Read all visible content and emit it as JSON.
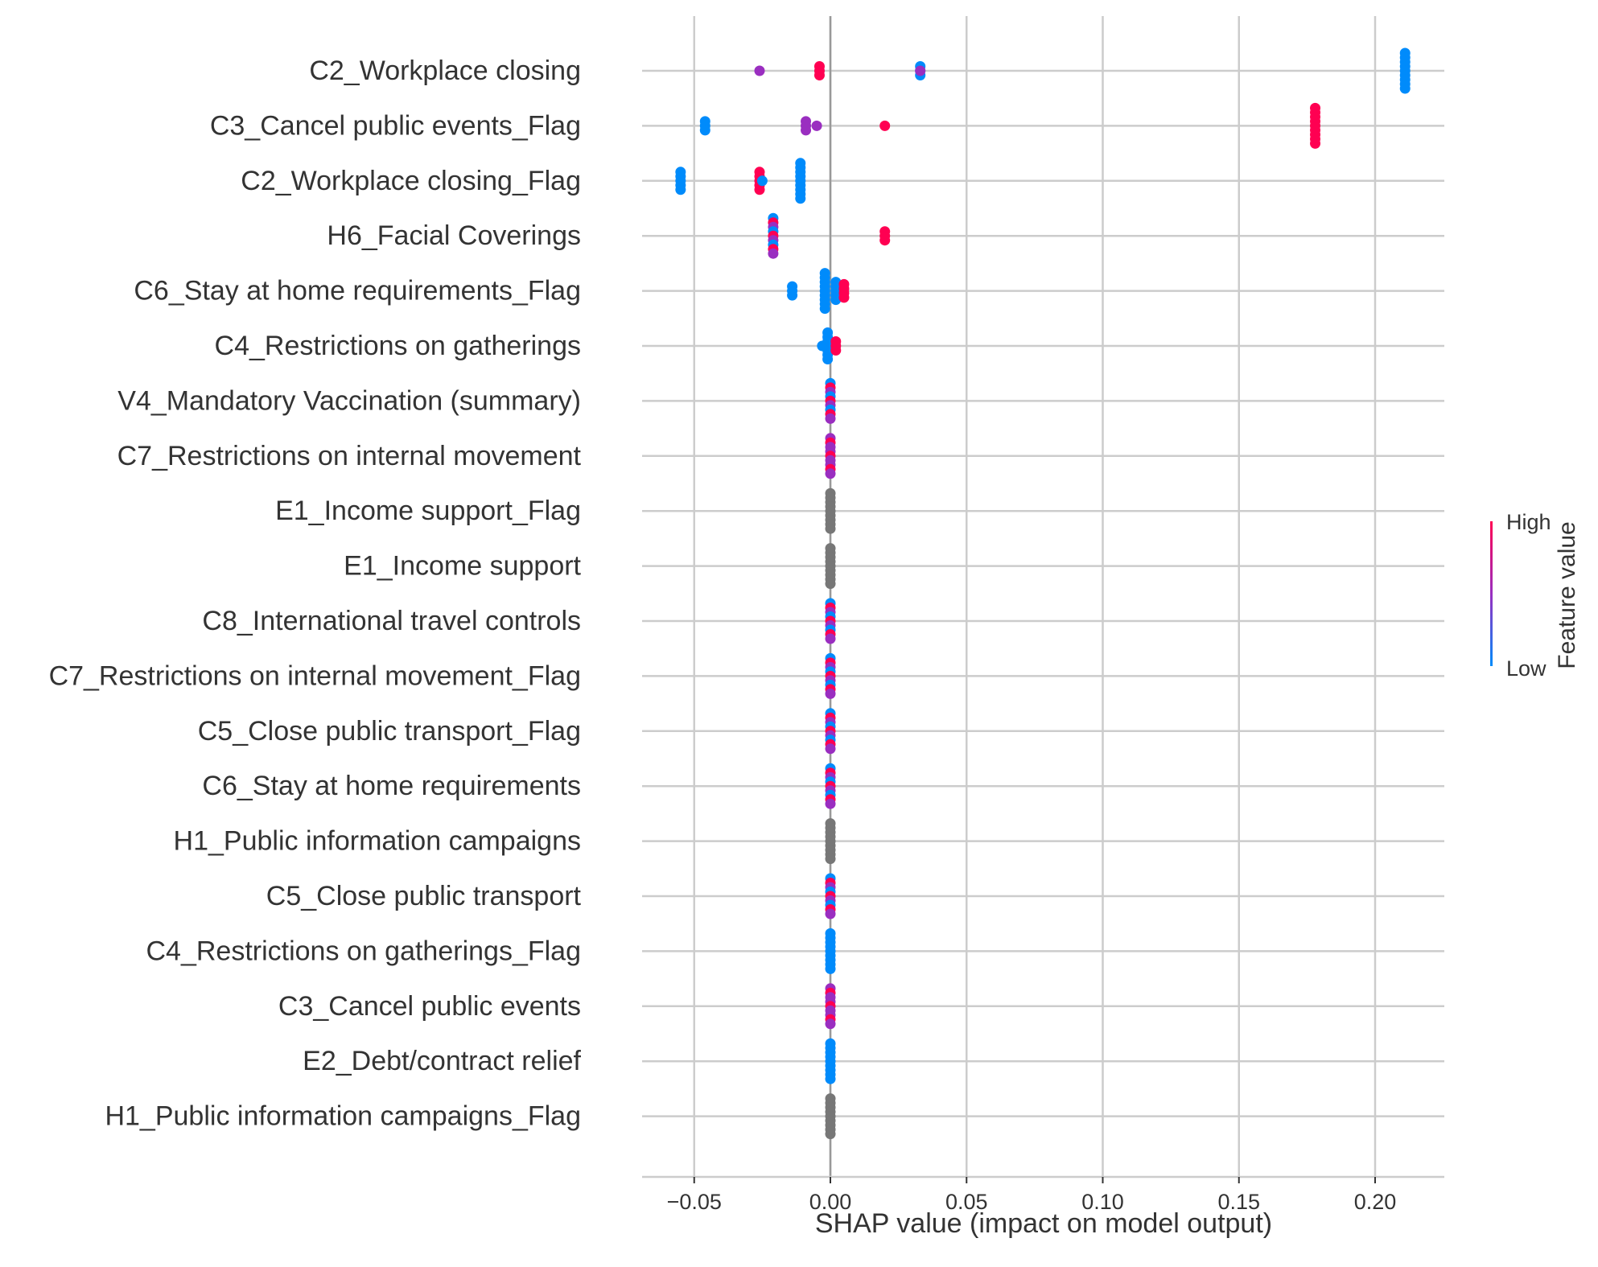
{
  "chart_data": {
    "type": "scatter",
    "subtype": "shap-beeswarm",
    "title": "",
    "xlabel": "SHAP value (impact on model output)",
    "ylabel": "",
    "xlim": [
      -0.068,
      0.225
    ],
    "xticks": [
      -0.05,
      0.0,
      0.05,
      0.1,
      0.15,
      0.2
    ],
    "xtick_labels": [
      "−0.05",
      "0.00",
      "0.05",
      "0.10",
      "0.15",
      "0.20"
    ],
    "grid": "vertical and horizontal",
    "colors": {
      "high": "#ff0052",
      "low": "#008bfb",
      "mid": "#9a2ec0",
      "grid": "#cccccc",
      "zero_line": "#999999",
      "constant": "#777777"
    },
    "colorbar": {
      "title": "Feature value",
      "high_label": "High",
      "low_label": "Low",
      "placement": "right"
    },
    "features": [
      {
        "name": "C2_Workplace closing",
        "points": [
          {
            "x": -0.026,
            "v": 0.7,
            "n": 1
          },
          {
            "x": -0.004,
            "v": 0.95,
            "n": 3
          },
          {
            "x": 0.033,
            "v": 0.0,
            "n": 3
          },
          {
            "x": 0.033,
            "v": 0.5,
            "n": 1
          },
          {
            "x": 0.211,
            "v": 0.0,
            "n": 9
          }
        ]
      },
      {
        "name": "C3_Cancel public events_Flag",
        "points": [
          {
            "x": -0.046,
            "v": 0.1,
            "n": 3
          },
          {
            "x": -0.009,
            "v": 0.5,
            "n": 3
          },
          {
            "x": -0.005,
            "v": 0.5,
            "n": 1
          },
          {
            "x": 0.02,
            "v": 0.95,
            "n": 1
          },
          {
            "x": 0.178,
            "v": 1.0,
            "n": 9
          }
        ]
      },
      {
        "name": "C2_Workplace closing_Flag",
        "points": [
          {
            "x": -0.055,
            "v": 0.0,
            "n": 5
          },
          {
            "x": -0.026,
            "v": 1.0,
            "n": 5
          },
          {
            "x": -0.025,
            "v": 0.1,
            "n": 1
          },
          {
            "x": -0.011,
            "v": 0.0,
            "n": 9
          }
        ]
      },
      {
        "name": "H6_Facial Coverings",
        "points": [
          {
            "x": -0.021,
            "v": 0.0,
            "n": 9,
            "mixed": true
          },
          {
            "x": 0.02,
            "v": 1.0,
            "n": 3
          }
        ]
      },
      {
        "name": "C6_Stay at home requirements_Flag",
        "points": [
          {
            "x": -0.014,
            "v": 0.0,
            "n": 3
          },
          {
            "x": -0.002,
            "v": 0.0,
            "n": 9
          },
          {
            "x": 0.002,
            "v": 0.0,
            "n": 5
          },
          {
            "x": 0.005,
            "v": 1.0,
            "n": 4
          }
        ]
      },
      {
        "name": "C4_Restrictions on gatherings",
        "points": [
          {
            "x": -0.003,
            "v": 0.0,
            "n": 1
          },
          {
            "x": -0.001,
            "v": 0.0,
            "n": 7
          },
          {
            "x": 0.002,
            "v": 1.0,
            "n": 3
          }
        ]
      },
      {
        "name": "V4_Mandatory Vaccination (summary)",
        "points": [
          {
            "x": 0.0,
            "v": 0.0,
            "n": 9,
            "mixed": true
          }
        ]
      },
      {
        "name": "C7_Restrictions on internal movement",
        "points": [
          {
            "x": 0.0,
            "v": 0.5,
            "n": 9,
            "mixed": true
          }
        ]
      },
      {
        "name": "E1_Income support_Flag",
        "points": [
          {
            "x": 0.0,
            "const": true,
            "n": 9
          }
        ]
      },
      {
        "name": "E1_Income support",
        "points": [
          {
            "x": 0.0,
            "const": true,
            "n": 9
          }
        ]
      },
      {
        "name": "C8_International travel controls",
        "points": [
          {
            "x": 0.0,
            "v": 0.0,
            "n": 9,
            "mixed": true
          }
        ]
      },
      {
        "name": "C7_Restrictions on internal movement_Flag",
        "points": [
          {
            "x": 0.0,
            "v": 0.0,
            "n": 9,
            "mixed": true
          }
        ]
      },
      {
        "name": "C5_Close public transport_Flag",
        "points": [
          {
            "x": 0.0,
            "v": 0.0,
            "n": 9,
            "mixed": true
          }
        ]
      },
      {
        "name": "C6_Stay at home requirements",
        "points": [
          {
            "x": 0.0,
            "v": 0.0,
            "n": 9,
            "mixed": true
          }
        ]
      },
      {
        "name": "H1_Public information campaigns",
        "points": [
          {
            "x": 0.0,
            "const": true,
            "n": 9
          }
        ]
      },
      {
        "name": "C5_Close public transport",
        "points": [
          {
            "x": 0.0,
            "v": 0.0,
            "n": 9,
            "mixed": true
          }
        ]
      },
      {
        "name": "C4_Restrictions on gatherings_Flag",
        "points": [
          {
            "x": 0.0,
            "v": 0.0,
            "n": 9
          }
        ]
      },
      {
        "name": "C3_Cancel public events",
        "points": [
          {
            "x": 0.0,
            "v": 0.5,
            "n": 9,
            "mixed": true
          }
        ]
      },
      {
        "name": "E2_Debt/contract relief",
        "points": [
          {
            "x": 0.0,
            "v": 0.0,
            "n": 9
          }
        ]
      },
      {
        "name": "H1_Public information campaigns_Flag",
        "points": [
          {
            "x": 0.0,
            "const": true,
            "n": 9
          }
        ]
      }
    ]
  }
}
